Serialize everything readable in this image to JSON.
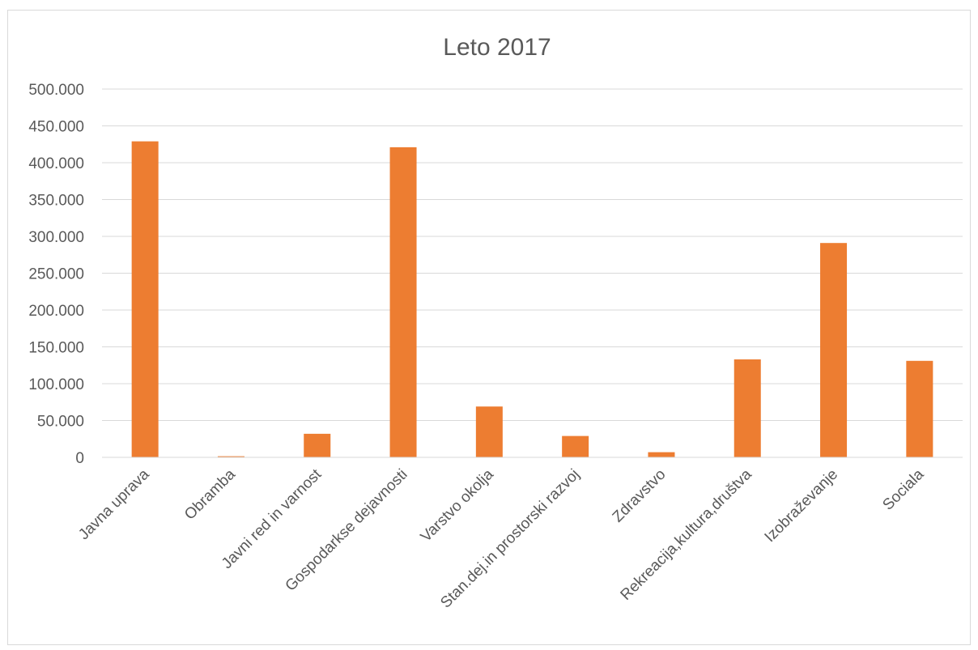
{
  "chart_data": {
    "type": "bar",
    "title": "Leto 2017",
    "xlabel": "",
    "ylabel": "",
    "ylim": [
      0,
      500000
    ],
    "yticks": [
      0,
      50000,
      100000,
      150000,
      200000,
      250000,
      300000,
      350000,
      400000,
      450000,
      500000
    ],
    "ytick_labels": [
      "0",
      "50.000",
      "100.000",
      "150.000",
      "200.000",
      "250.000",
      "300.000",
      "350.000",
      "400.000",
      "450.000",
      "500.000"
    ],
    "categories": [
      "Javna uprava",
      "Obramba",
      "Javni red in varnost",
      "Gospodarkse dejavnosti",
      "Varstvo okolja",
      "Stan.dej.in prostorski razvoj",
      "Zdravstvo",
      "Rekreacija,kultura,društva",
      "Izobraževanje",
      "Sociala"
    ],
    "values": [
      429000,
      1500,
      32000,
      421000,
      69000,
      29000,
      7000,
      133000,
      291000,
      131000
    ],
    "grid": true,
    "legend": "none",
    "bar_color": "#ed7d31",
    "gridline_color": "#d9d9d9"
  }
}
